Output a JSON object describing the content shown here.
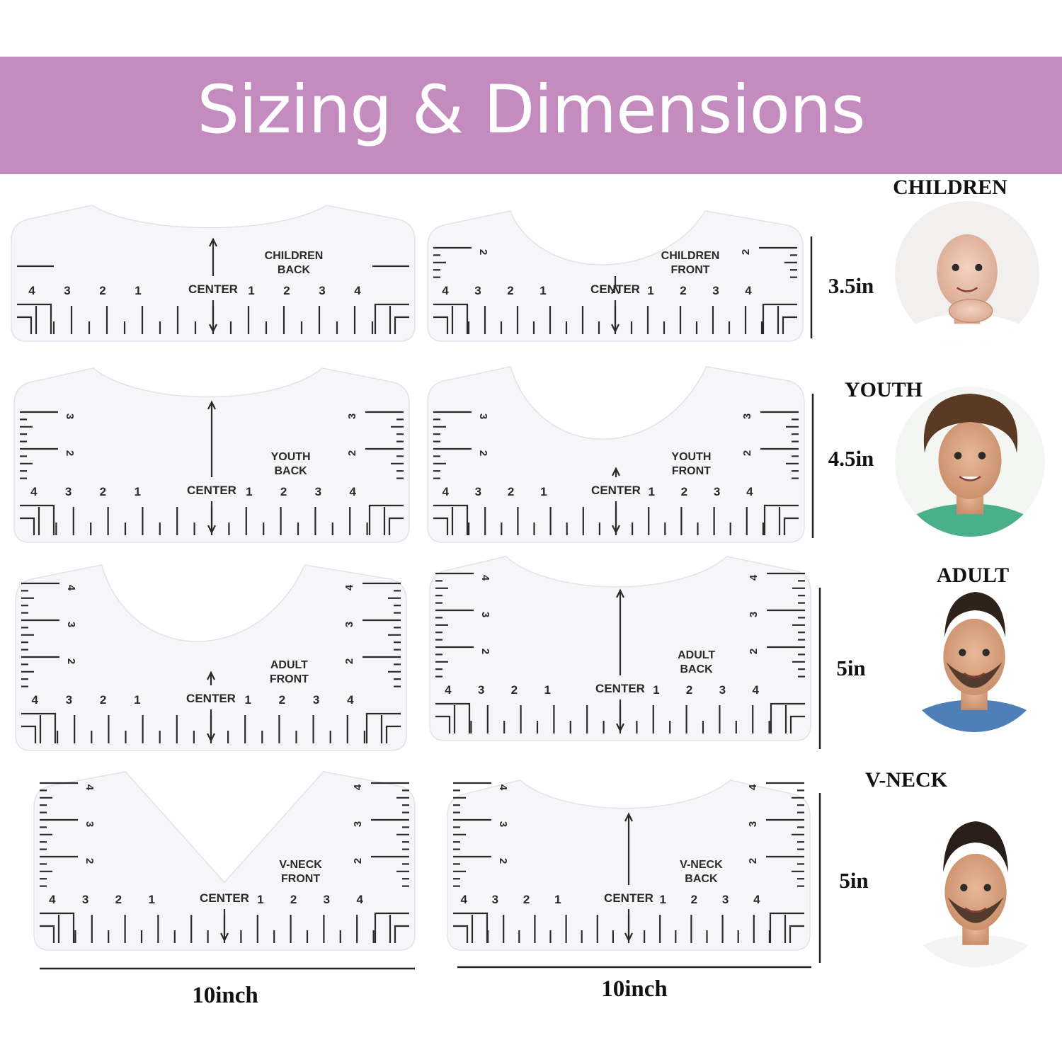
{
  "banner": {
    "title": "Sizing & Dimensions"
  },
  "colors": {
    "banner": "#c38bbe",
    "ruler": "#f6f6f9",
    "ink": "#2a2a2a"
  },
  "rows": [
    {
      "category": "CHILDREN",
      "height_label": "3.5in",
      "rulers": [
        {
          "line1": "CHILDREN",
          "line2": "BACK",
          "neck": "shallow-back",
          "rows": 0
        },
        {
          "line1": "CHILDREN",
          "line2": "FRONT",
          "neck": "deep-front",
          "rows": 1
        }
      ]
    },
    {
      "category": "YOUTH",
      "height_label": "4.5in",
      "rulers": [
        {
          "line1": "YOUTH",
          "line2": "BACK",
          "neck": "shallow-back",
          "rows": 2
        },
        {
          "line1": "YOUTH",
          "line2": "FRONT",
          "neck": "deep-front",
          "rows": 2
        }
      ]
    },
    {
      "category": "ADULT",
      "height_label": "5in",
      "rulers": [
        {
          "line1": "ADULT",
          "line2": "FRONT",
          "neck": "deep-front",
          "rows": 3
        },
        {
          "line1": "ADULT",
          "line2": "BACK",
          "neck": "shallow-back",
          "rows": 3
        }
      ]
    },
    {
      "category": "V-NECK",
      "height_label": "5in",
      "rulers": [
        {
          "line1": "V-NECK",
          "line2": "FRONT",
          "neck": "v",
          "rows": 3
        },
        {
          "line1": "V-NECK",
          "line2": "BACK",
          "neck": "shallow-back",
          "rows": 3
        }
      ]
    }
  ],
  "ruler_text": {
    "center": "CENTER",
    "left_numbers": [
      "4",
      "3",
      "2",
      "1"
    ],
    "right_numbers": [
      "1",
      "2",
      "3",
      "4"
    ],
    "side_numbers": [
      "2",
      "3",
      "4"
    ]
  },
  "widths": [
    "10inch",
    "10inch"
  ],
  "icons": [
    "baby-photo",
    "youth-photo",
    "adult-photo",
    "vneck-man-photo"
  ]
}
